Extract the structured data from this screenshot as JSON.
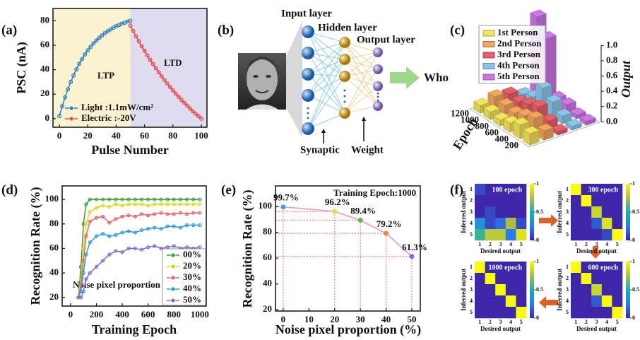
{
  "chart_data": [
    {
      "panel": "(a)",
      "type": "line",
      "xlabel": "Pulse Number",
      "ylabel": "PSC (nA)",
      "annotations": [
        "LTP",
        "LTD"
      ],
      "xlim": [
        -4.5,
        104
      ],
      "ylim": [
        -7,
        90
      ],
      "xticks": [
        0,
        20,
        40,
        60,
        80,
        100
      ],
      "yticks": [
        0,
        20,
        40,
        60,
        80
      ],
      "series": [
        {
          "name": "Light :1.1mW/cm²",
          "color": "#2a7bbf",
          "x": [
            0,
            2,
            4,
            6,
            8,
            10,
            12,
            14,
            16,
            18,
            20,
            22,
            24,
            26,
            28,
            30,
            32,
            34,
            36,
            38,
            40,
            42,
            44,
            46,
            48,
            50
          ],
          "values": [
            2,
            10.1,
            17.4,
            24.0,
            30.0,
            35.4,
            40.3,
            44.8,
            48.8,
            52.4,
            55.7,
            58.7,
            61.4,
            63.8,
            66.0,
            68.0,
            69.8,
            71.4,
            72.9,
            74.3,
            75.5,
            76.6,
            77.5,
            78.4,
            79.3,
            80.0
          ]
        },
        {
          "name": "Electric :-20V",
          "color": "#e8474c",
          "x": [
            50,
            52,
            54,
            56,
            58,
            60,
            62,
            64,
            66,
            68,
            70,
            72,
            74,
            76,
            78,
            80,
            82,
            84,
            86,
            88,
            90,
            92,
            94,
            96,
            98,
            100
          ],
          "values": [
            76.0,
            71.6,
            67.3,
            63.2,
            59.2,
            55.4,
            51.6,
            48.0,
            44.5,
            41.2,
            37.9,
            34.7,
            31.7,
            28.7,
            25.9,
            23.1,
            20.4,
            17.9,
            15.4,
            12.9,
            10.6,
            8.3,
            6.1,
            4.0,
            2.0,
            0
          ]
        }
      ]
    },
    {
      "panel": "(c)",
      "type": "bar3d",
      "xlabel": "Epoch",
      "ylabel": "Output",
      "categories": [
        200,
        400,
        600,
        800,
        1000,
        1200
      ],
      "ylim": [
        0,
        1
      ],
      "yticks": [
        {
          "value": 0,
          "label": "0.0"
        },
        {
          "value": 0.2,
          "label": "0.2"
        },
        {
          "value": 0.4,
          "label": "0.4"
        },
        {
          "value": 0.6,
          "label": "0.6"
        },
        {
          "value": 0.8,
          "label": "0.8"
        },
        {
          "value": 1,
          "label": "1.0"
        }
      ],
      "series": [
        {
          "name": "1st Person",
          "color": "#f3e45c",
          "values": [
            0.15,
            0.18,
            0.12,
            0.08,
            0.1,
            0.1
          ]
        },
        {
          "name": "2nd Person",
          "color": "#f2a65c",
          "values": [
            0.12,
            0.2,
            0.15,
            0.1,
            0.12,
            0.15
          ]
        },
        {
          "name": "3rd Person",
          "color": "#e6606a",
          "values": [
            0.05,
            0.1,
            0.2,
            0.15,
            0.1,
            0.12
          ]
        },
        {
          "name": "4th Person",
          "color": "#8cc4e8",
          "values": [
            0.05,
            0.1,
            0.2,
            0.3,
            0.1,
            0.05
          ]
        },
        {
          "name": "5th Person",
          "color": "#cc77e6",
          "values": [
            0.05,
            0.05,
            0.1,
            0.1,
            0.8,
            1.0
          ]
        }
      ]
    },
    {
      "panel": "(d)",
      "type": "line",
      "xlabel": "Training Epoch",
      "ylabel": "Recognition Rate (%)",
      "annotations": [
        "Noise pixel proportion"
      ],
      "xlim": [
        -65,
        1050
      ],
      "ylim": [
        13,
        111
      ],
      "xticks": [
        0,
        200,
        400,
        600,
        800,
        1000
      ],
      "yticks": [
        20,
        40,
        60,
        80,
        100
      ],
      "x": [
        60,
        80,
        100,
        120,
        150,
        200,
        250,
        300,
        350,
        400,
        450,
        500,
        550,
        600,
        650,
        700,
        750,
        800,
        850,
        900,
        950,
        1000
      ],
      "series": [
        {
          "name": "00%",
          "color": "#3c9c3c",
          "values": [
            20,
            45,
            80,
            96,
            100,
            100,
            100,
            100,
            100,
            100,
            100,
            100,
            100,
            100,
            100,
            100,
            100,
            100,
            100,
            100,
            100,
            100
          ]
        },
        {
          "name": "20%",
          "color": "#e2d41c",
          "values": [
            20,
            35,
            60,
            80,
            90,
            93,
            95,
            94,
            96,
            95,
            96,
            96,
            96,
            95,
            96,
            96,
            96,
            96,
            96,
            96,
            96,
            96
          ]
        },
        {
          "name": "30%",
          "color": "#e6606a",
          "values": [
            20,
            30,
            50,
            70,
            82,
            85,
            86,
            81,
            84,
            86,
            87,
            86,
            88,
            87,
            88,
            89,
            88,
            88,
            89,
            88,
            89,
            89
          ]
        },
        {
          "name": "40%",
          "color": "#2a9bd0",
          "values": [
            20,
            25,
            40,
            55,
            65,
            70,
            72,
            70,
            71,
            73,
            74,
            73,
            75,
            76,
            77,
            76,
            78,
            78,
            77,
            79,
            79,
            79
          ]
        },
        {
          "name": "50%",
          "color": "#7b6bc8",
          "values": [
            20,
            20,
            25,
            35,
            40,
            45,
            50,
            55,
            58,
            57,
            60,
            60,
            59,
            61,
            62,
            60,
            61,
            62,
            60,
            61,
            60,
            61
          ]
        }
      ]
    },
    {
      "panel": "(e)",
      "type": "scatter",
      "xlabel": "Noise pixel proportion (%)",
      "ylabel": "Recognition Rate (%)",
      "annotations": [
        "Training Epoch:1000"
      ],
      "xlim": [
        -3,
        53.3
      ],
      "ylim": [
        19,
        116
      ],
      "xticks": [
        0,
        10,
        20,
        30,
        40,
        50
      ],
      "yticks": [
        20,
        40,
        60,
        80,
        100
      ],
      "x": [
        0,
        20,
        30,
        40,
        50
      ],
      "values": [
        99.7,
        96.2,
        89.4,
        79.2,
        61.3
      ],
      "value_labels": [
        "99.7%",
        "96.2%",
        "89.4%",
        "79.2%",
        "61.3%"
      ],
      "colors": [
        "#4a9be0",
        "#f0d840",
        "#6ab04c",
        "#e88a3c",
        "#8a6ad0"
      ],
      "line_color": "#e9a3c8"
    },
    {
      "panel": "(f)",
      "type": "heatmap",
      "xlabel": "Desired output",
      "ylabel": "Inferred output",
      "xticks": [
        1,
        2,
        3,
        4,
        5
      ],
      "yticks": [
        1,
        2,
        3,
        4,
        5
      ],
      "clim": [
        0,
        1
      ],
      "colorbar_ticks": [
        0,
        0.5,
        1
      ],
      "matrices": [
        {
          "title": "100 epoch",
          "values": [
            [
              0.1,
              0,
              0,
              0,
              0
            ],
            [
              0,
              0,
              0,
              0,
              0
            ],
            [
              0,
              0.1,
              0,
              0,
              0
            ],
            [
              0.35,
              0.1,
              0.2,
              0.75,
              0.1
            ],
            [
              0.55,
              0.8,
              0.8,
              0.25,
              0.9
            ]
          ]
        },
        {
          "title": "300 epoch",
          "values": [
            [
              1,
              0,
              0,
              0,
              0
            ],
            [
              0,
              1,
              0,
              0,
              0
            ],
            [
              0,
              0,
              0.85,
              0,
              0
            ],
            [
              0,
              0,
              0.15,
              0.9,
              0
            ],
            [
              0,
              0,
              0,
              0.1,
              1
            ]
          ]
        },
        {
          "title": "600 epoch",
          "values": [
            [
              1,
              0,
              0,
              0,
              0
            ],
            [
              0,
              1,
              0,
              0,
              0
            ],
            [
              0,
              0,
              0.85,
              0,
              0
            ],
            [
              0,
              0,
              0.15,
              1,
              0
            ],
            [
              0,
              0,
              0,
              0,
              1
            ]
          ]
        },
        {
          "title": "1000 epoch",
          "values": [
            [
              1,
              0,
              0,
              0,
              0
            ],
            [
              0,
              1,
              0,
              0,
              0
            ],
            [
              0,
              0,
              1,
              0,
              0
            ],
            [
              0,
              0,
              0,
              1,
              0
            ],
            [
              0,
              0,
              0,
              0,
              1
            ]
          ]
        }
      ]
    }
  ],
  "diagram": {
    "panel": "(b)",
    "input_label": "Input layer",
    "hidden_label": "Hidden layer",
    "output_label": "Output layer",
    "output_text": "Who",
    "synapse_label": "Synaptic",
    "weight_label": "Weight"
  }
}
